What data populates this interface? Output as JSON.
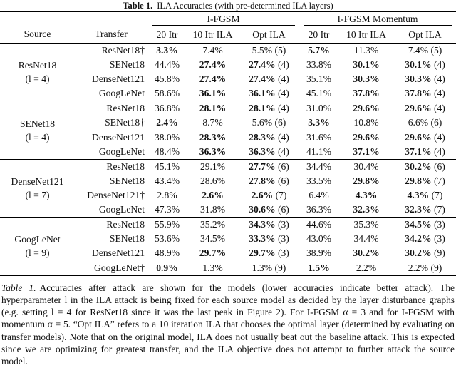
{
  "title": {
    "label": "Table 1.",
    "text": "ILA Accuracies (with pre-determined ILA layers)"
  },
  "header": {
    "source": "Source",
    "transfer": "Transfer",
    "groups": [
      "I-FGSM",
      "I-FGSM Momentum"
    ],
    "columns": [
      "20 Itr",
      "10 Itr ILA",
      "Opt ILA",
      "20 Itr",
      "10 Itr ILA",
      "Opt ILA"
    ]
  },
  "sections": [
    {
      "source": "ResNet18",
      "layer": "(l = 4)",
      "rows": [
        {
          "transfer": "ResNet18†",
          "cells": [
            {
              "v": "3.3%",
              "b": true
            },
            {
              "v": "7.4%"
            },
            {
              "v": "5.5%",
              "n": "(5)"
            },
            {
              "v": "5.7%",
              "b": true
            },
            {
              "v": "11.3%"
            },
            {
              "v": "7.4%",
              "n": "(5)"
            }
          ]
        },
        {
          "transfer": "SENet18",
          "cells": [
            {
              "v": "44.4%"
            },
            {
              "v": "27.4%",
              "b": true
            },
            {
              "v": "27.4%",
              "n": "(4)",
              "b": true
            },
            {
              "v": "33.8%"
            },
            {
              "v": "30.1%",
              "b": true
            },
            {
              "v": "30.1%",
              "n": "(4)",
              "b": true
            }
          ]
        },
        {
          "transfer": "DenseNet121",
          "cells": [
            {
              "v": "45.8%"
            },
            {
              "v": "27.4%",
              "b": true
            },
            {
              "v": "27.4%",
              "n": "(4)",
              "b": true
            },
            {
              "v": "35.1%"
            },
            {
              "v": "30.3%",
              "b": true
            },
            {
              "v": "30.3%",
              "n": "(4)",
              "b": true
            }
          ]
        },
        {
          "transfer": "GoogLeNet",
          "cells": [
            {
              "v": "58.6%"
            },
            {
              "v": "36.1%",
              "b": true
            },
            {
              "v": "36.1%",
              "n": "(4)",
              "b": true
            },
            {
              "v": "45.1%"
            },
            {
              "v": "37.8%",
              "b": true
            },
            {
              "v": "37.8%",
              "n": "(4)",
              "b": true
            }
          ]
        }
      ]
    },
    {
      "source": "SENet18",
      "layer": "(l = 4)",
      "rows": [
        {
          "transfer": "ResNet18",
          "cells": [
            {
              "v": "36.8%"
            },
            {
              "v": "28.1%",
              "b": true
            },
            {
              "v": "28.1%",
              "n": "(4)",
              "b": true
            },
            {
              "v": "31.0%"
            },
            {
              "v": "29.6%",
              "b": true
            },
            {
              "v": "29.6%",
              "n": "(4)",
              "b": true
            }
          ]
        },
        {
          "transfer": "SENet18†",
          "cells": [
            {
              "v": "2.4%",
              "b": true
            },
            {
              "v": "8.7%"
            },
            {
              "v": "5.6%",
              "n": "(6)"
            },
            {
              "v": "3.3%",
              "b": true
            },
            {
              "v": "10.8%"
            },
            {
              "v": "6.6%",
              "n": "(6)"
            }
          ]
        },
        {
          "transfer": "DenseNet121",
          "cells": [
            {
              "v": "38.0%"
            },
            {
              "v": "28.3%",
              "b": true
            },
            {
              "v": "28.3%",
              "n": "(4)",
              "b": true
            },
            {
              "v": "31.6%"
            },
            {
              "v": "29.6%",
              "b": true
            },
            {
              "v": "29.6%",
              "n": "(4)",
              "b": true
            }
          ]
        },
        {
          "transfer": "GoogLeNet",
          "cells": [
            {
              "v": "48.4%"
            },
            {
              "v": "36.3%",
              "b": true
            },
            {
              "v": "36.3%",
              "n": "(4)",
              "b": true
            },
            {
              "v": "41.1%"
            },
            {
              "v": "37.1%",
              "b": true
            },
            {
              "v": "37.1%",
              "n": "(4)",
              "b": true
            }
          ]
        }
      ]
    },
    {
      "source": "DenseNet121",
      "layer": "(l = 7)",
      "rows": [
        {
          "transfer": "ResNet18",
          "cells": [
            {
              "v": "45.1%"
            },
            {
              "v": "29.1%"
            },
            {
              "v": "27.7%",
              "n": "(6)",
              "b": true
            },
            {
              "v": "34.4%"
            },
            {
              "v": "30.4%"
            },
            {
              "v": "30.2%",
              "n": "(6)",
              "b": true
            }
          ]
        },
        {
          "transfer": "SENet18",
          "cells": [
            {
              "v": "43.4%"
            },
            {
              "v": "28.6%"
            },
            {
              "v": "27.8%",
              "n": "(6)",
              "b": true
            },
            {
              "v": "33.5%"
            },
            {
              "v": "29.8%",
              "b": true
            },
            {
              "v": "29.8%",
              "n": "(7)",
              "b": true
            }
          ]
        },
        {
          "transfer": "DenseNet121†",
          "cells": [
            {
              "v": "2.8%"
            },
            {
              "v": "2.6%",
              "b": true
            },
            {
              "v": "2.6%",
              "n": "(7)",
              "b": true
            },
            {
              "v": "6.4%"
            },
            {
              "v": "4.3%",
              "b": true
            },
            {
              "v": "4.3%",
              "n": "(7)",
              "b": true
            }
          ]
        },
        {
          "transfer": "GoogLeNet",
          "cells": [
            {
              "v": "47.3%"
            },
            {
              "v": "31.8%"
            },
            {
              "v": "30.6%",
              "n": "(6)",
              "b": true
            },
            {
              "v": "36.3%"
            },
            {
              "v": "32.3%",
              "b": true
            },
            {
              "v": "32.3%",
              "n": "(7)",
              "b": true
            }
          ]
        }
      ]
    },
    {
      "source": "GoogLeNet",
      "layer": "(l = 9)",
      "rows": [
        {
          "transfer": "ResNet18",
          "cells": [
            {
              "v": "55.9%"
            },
            {
              "v": "35.2%"
            },
            {
              "v": "34.3%",
              "n": "(3)",
              "b": true
            },
            {
              "v": "44.6%"
            },
            {
              "v": "35.3%"
            },
            {
              "v": "34.5%",
              "n": "(3)",
              "b": true
            }
          ]
        },
        {
          "transfer": "SENet18",
          "cells": [
            {
              "v": "53.6%"
            },
            {
              "v": "34.5%"
            },
            {
              "v": "33.3%",
              "n": "(3)",
              "b": true
            },
            {
              "v": "43.0%"
            },
            {
              "v": "34.4%"
            },
            {
              "v": "34.2%",
              "n": "(3)",
              "b": true
            }
          ]
        },
        {
          "transfer": "DenseNet121",
          "cells": [
            {
              "v": "48.9%"
            },
            {
              "v": "29.7%",
              "b": true
            },
            {
              "v": "29.7%",
              "n": "(3)",
              "b": true
            },
            {
              "v": "38.9%"
            },
            {
              "v": "30.2%",
              "b": true
            },
            {
              "v": "30.2%",
              "n": "(9)",
              "b": true
            }
          ]
        },
        {
          "transfer": "GoogLeNet†",
          "cells": [
            {
              "v": "0.9%",
              "b": true
            },
            {
              "v": "1.3%"
            },
            {
              "v": "1.3%",
              "n": "(9)"
            },
            {
              "v": "1.5%",
              "b": true
            },
            {
              "v": "2.2%"
            },
            {
              "v": "2.2%",
              "n": "(9)"
            }
          ]
        }
      ]
    }
  ],
  "caption": {
    "label": "Table 1.",
    "text": "Accuracies after attack are shown for the models (lower accuracies indicate better attack). The hyperparameter l in the ILA attack is being fixed for each source model as decided by the layer disturbance graphs (e.g. setting l = 4 for ResNet18 since it was the last peak in Figure 2). For I-FGSM α = 3 and for I-FGSM with momentum α = 5. “Opt ILA” refers to a 10 iteration ILA that chooses the optimal layer (determined by evaluating on transfer models). Note that on the original model, ILA does not usually beat out the baseline attack. This is expected since we are optimizing for greatest transfer, and the ILA objective does not attempt to further attack the source model."
  }
}
